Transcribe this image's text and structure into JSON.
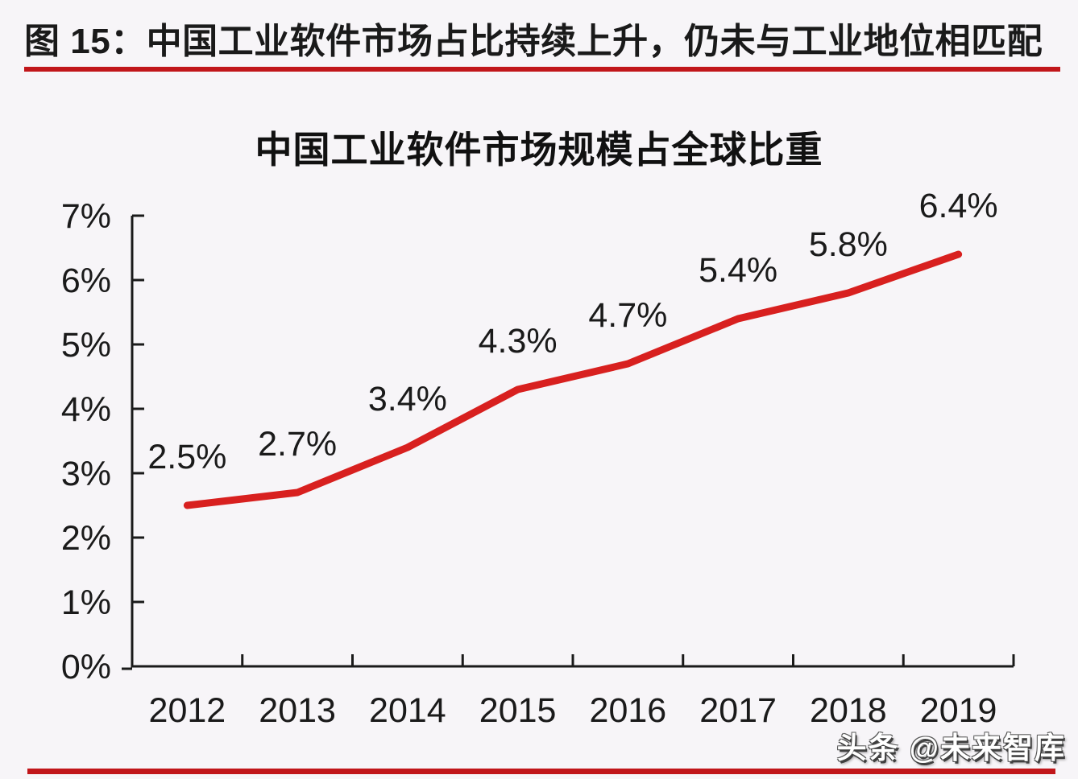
{
  "header": {
    "figure_title": "图 15：中国工业软件市场占比持续上升，仍未与工业地位相匹配"
  },
  "watermark": "头条 @未来智库",
  "colors": {
    "background": "#f7f5f8",
    "rule_red": "#c1161a",
    "line_red": "#d8201f",
    "text_black": "#1a1a1a"
  },
  "chart_data": {
    "type": "line",
    "title": "中国工业软件市场规模占全球比重",
    "categories": [
      "2012",
      "2013",
      "2014",
      "2015",
      "2016",
      "2017",
      "2018",
      "2019"
    ],
    "series": [
      {
        "name": "中国工业软件市场规模占全球比重",
        "values": [
          2.5,
          2.7,
          3.4,
          4.3,
          4.7,
          5.4,
          5.8,
          6.4
        ]
      }
    ],
    "data_labels": [
      "2.5%",
      "2.7%",
      "3.4%",
      "4.3%",
      "4.7%",
      "5.4%",
      "5.8%",
      "6.4%"
    ],
    "xlabel": "",
    "ylabel": "",
    "ylim": [
      0,
      7
    ],
    "ytick_labels": [
      "0%",
      "1%",
      "2%",
      "3%",
      "4%",
      "5%",
      "6%",
      "7%"
    ],
    "grid": false,
    "legend": "none"
  }
}
